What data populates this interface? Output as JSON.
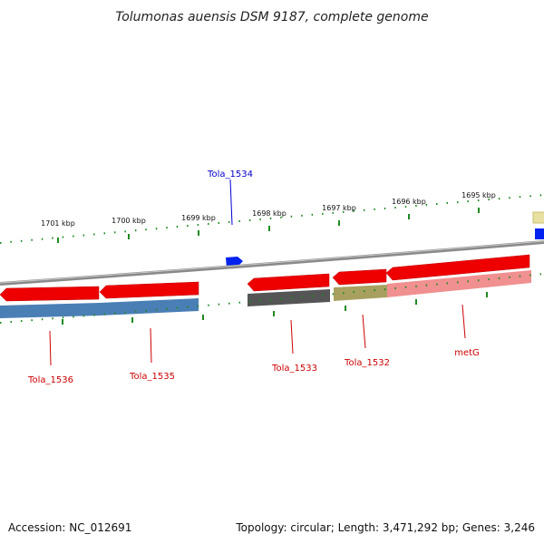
{
  "title": "Tolumonas auensis DSM 9187, complete genome",
  "footer": {
    "accession": "Accession: NC_012691",
    "summary": "Topology: circular; Length: 3,471,292 bp; Genes: 3,246"
  },
  "scale_labels": [
    "1701 kbp",
    "1700 kbp",
    "1699 kbp",
    "1698 kbp",
    "1697 kbp",
    "1696 kbp",
    "1695 kbp"
  ],
  "gene_labels": [
    {
      "id": "tola1534",
      "text": "Tola_1534",
      "color": "#0000cc"
    },
    {
      "id": "tola1536",
      "text": "Tola_1536",
      "color": "#cc0000"
    },
    {
      "id": "tola1535",
      "text": "Tola_1535",
      "color": "#cc0000"
    },
    {
      "id": "tola1533",
      "text": "Tola_1533",
      "color": "#cc0000"
    },
    {
      "id": "tola1532",
      "text": "Tola_1532",
      "color": "#cc0000"
    },
    {
      "id": "metg",
      "text": "metG",
      "color": "#cc0000"
    }
  ],
  "colors": {
    "backbone": "#8a8a8a",
    "gene_red": "#ee0000",
    "tick_green": "#1f8a1f",
    "cog_blue": "#4a7fb5",
    "cog_gray": "#555555",
    "cog_olive": "#a8a060",
    "cog_pink": "#f09090",
    "cog_yellow": "#e8e0a0",
    "gene_blue": "#0022ee"
  }
}
